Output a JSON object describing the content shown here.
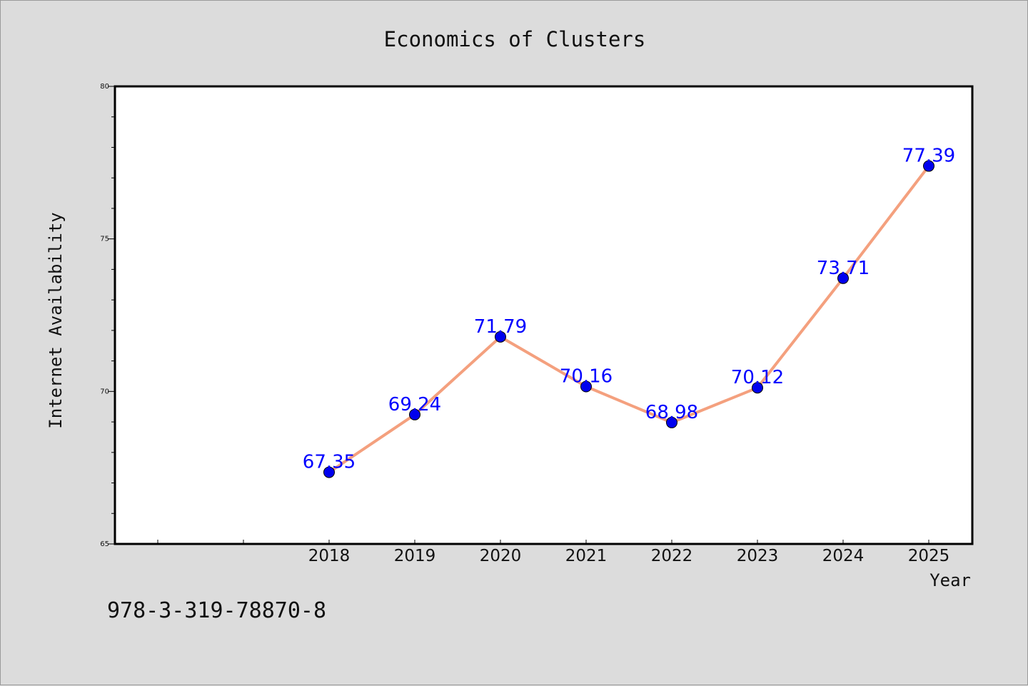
{
  "chart_data": {
    "type": "line",
    "title": "Economics of Clusters",
    "xlabel": "Year",
    "ylabel": "Internet Availability",
    "categories": [
      "2018",
      "2019",
      "2020",
      "2021",
      "2022",
      "2023",
      "2024",
      "2025"
    ],
    "values": [
      67.35,
      69.24,
      71.79,
      70.16,
      68.98,
      70.12,
      73.71,
      77.39
    ],
    "data_labels": [
      "67.35",
      "69.24",
      "71.79",
      "70.16",
      "68.98",
      "70.12",
      "73.71",
      "77.39"
    ],
    "ylim": [
      65,
      80
    ],
    "yticks": [
      65,
      70,
      75,
      80
    ],
    "ytick_labels": [
      "65",
      "70",
      "75",
      "80"
    ],
    "grid": false,
    "line_color": "#f4a07e",
    "marker_color": "#0000ee",
    "label_color": "#0000ff"
  },
  "footer": {
    "isbn": "978-3-319-78870-8"
  }
}
